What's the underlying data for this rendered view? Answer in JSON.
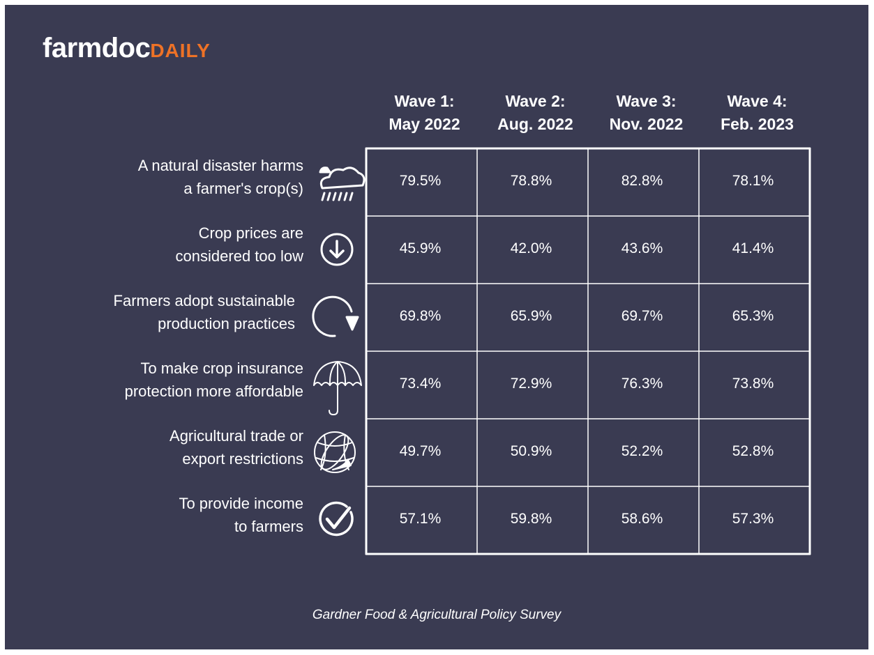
{
  "logo": {
    "main": "farmdoc",
    "accent": "DAILY"
  },
  "table": {
    "headers": [
      {
        "line1": "Wave 1:",
        "line2": "May 2022"
      },
      {
        "line1": "Wave 2:",
        "line2": "Aug. 2022"
      },
      {
        "line1": "Wave 3:",
        "line2": "Nov. 2022"
      },
      {
        "line1": "Wave 4:",
        "line2": "Feb. 2023"
      }
    ],
    "rows": [
      {
        "label": [
          "A natural disaster harms",
          "a farmer's  crop(s)"
        ],
        "values": [
          "79.5%",
          "78.8%",
          "82.8%",
          "78.1%"
        ]
      },
      {
        "label": [
          "Crop prices are",
          "considered too low"
        ],
        "values": [
          "45.9%",
          "42.0%",
          "43.6%",
          "41.4%"
        ]
      },
      {
        "label": [
          "Farmers adopt sustainable",
          "production practices"
        ],
        "values": [
          "69.8%",
          "65.9%",
          "69.7%",
          "65.3%"
        ]
      },
      {
        "label": [
          "To make crop insurance",
          "protection more affordable"
        ],
        "values": [
          "73.4%",
          "72.9%",
          "76.3%",
          "73.8%"
        ]
      },
      {
        "label": [
          "Agricultural trade or",
          "export restrictions"
        ],
        "values": [
          "49.7%",
          "50.9%",
          "52.2%",
          "52.8%"
        ]
      },
      {
        "label": [
          "To provide income",
          "to farmers"
        ],
        "values": [
          "57.1%",
          "59.8%",
          "58.6%",
          "57.3%"
        ]
      }
    ]
  },
  "footer": "Gardner Food & Agricultural Policy Survey"
}
